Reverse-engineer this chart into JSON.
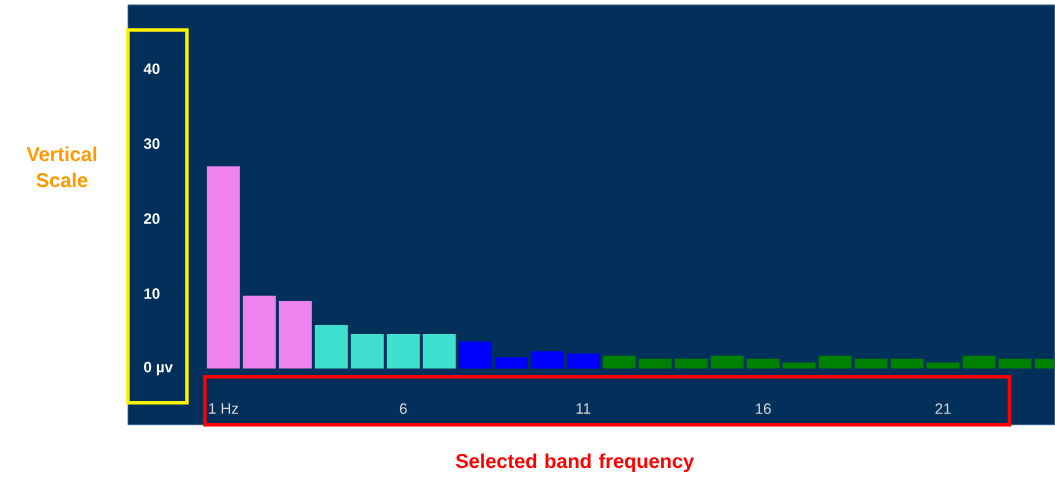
{
  "chart_data": {
    "type": "bar",
    "categories": [
      "1 Hz",
      null,
      null,
      null,
      null,
      "6",
      null,
      null,
      null,
      null,
      "11",
      null,
      null,
      null,
      null,
      "16",
      null,
      null,
      null,
      null,
      "21",
      null,
      null,
      null
    ],
    "values": [
      27,
      9.7,
      9,
      5.8,
      4.6,
      4.6,
      4.6,
      3.6,
      1.5,
      2.3,
      2.0,
      1.7,
      1.3,
      1.3,
      1.7,
      1.3,
      0.8,
      1.7,
      1.3,
      1.3,
      0.8,
      1.7,
      1.3,
      1.3
    ],
    "colors": [
      "#ee82ee",
      "#ee82ee",
      "#ee82ee",
      "#40e0d0",
      "#40e0d0",
      "#40e0d0",
      "#40e0d0",
      "#0000ff",
      "#0000ff",
      "#0000ff",
      "#0000ff",
      "#008000",
      "#008000",
      "#008000",
      "#008000",
      "#008000",
      "#008000",
      "#008000",
      "#008000",
      "#008000",
      "#008000",
      "#008000",
      "#008000",
      "#008000"
    ],
    "ylim": [
      -7.5,
      48.5
    ],
    "yticks": [
      {
        "value": 0,
        "label": "0 µv"
      },
      10,
      20,
      30,
      40
    ],
    "annotations": [
      "Vertical Scale",
      "Selected band frequency"
    ],
    "grid": false
  }
}
